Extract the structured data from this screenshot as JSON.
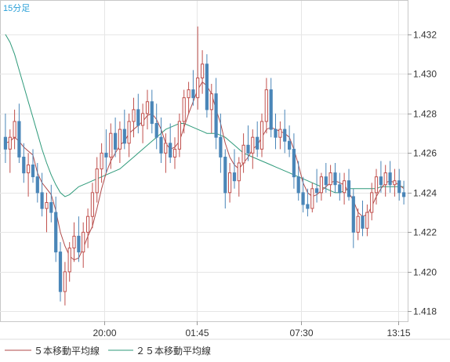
{
  "chart_data": {
    "type": "candlestick",
    "interval_label": "15分足",
    "x_ticks": [
      "20:00",
      "01:45",
      "07:30",
      "13:15"
    ],
    "y_ticks": [
      "1.418",
      "1.420",
      "1.422",
      "1.424",
      "1.426",
      "1.428",
      "1.430",
      "1.432"
    ],
    "ylim": [
      1.4175,
      1.4337
    ],
    "grid": true,
    "legend_position": "bottom-left",
    "colors": {
      "up": "#c0504d",
      "down": "#4a86b8",
      "ma5": "#b04a4a",
      "ma25": "#2e9a7a",
      "grid": "#e6e6e6",
      "interval": "#2aa0d8"
    },
    "legend": [
      {
        "label": "５本移動平均線",
        "color": "#b04a4a"
      },
      {
        "label": "２５本移動平均線",
        "color": "#2e9a7a"
      }
    ],
    "candles": [
      [
        1.4268,
        1.428,
        1.4255,
        1.4262
      ],
      [
        1.4262,
        1.4272,
        1.425,
        1.4268
      ],
      [
        1.4268,
        1.4282,
        1.4262,
        1.4276
      ],
      [
        1.4276,
        1.4285,
        1.4255,
        1.4258
      ],
      [
        1.4258,
        1.4265,
        1.4245,
        1.425
      ],
      [
        1.425,
        1.426,
        1.4238,
        1.4254
      ],
      [
        1.4254,
        1.4262,
        1.4245,
        1.4248
      ],
      [
        1.4248,
        1.4255,
        1.4235,
        1.424
      ],
      [
        1.424,
        1.425,
        1.4228,
        1.4232
      ],
      [
        1.4232,
        1.424,
        1.422,
        1.4235
      ],
      [
        1.4235,
        1.4244,
        1.4225,
        1.423
      ],
      [
        1.423,
        1.4238,
        1.4205,
        1.421
      ],
      [
        1.421,
        1.4215,
        1.4185,
        1.419
      ],
      [
        1.419,
        1.4205,
        1.4183,
        1.42
      ],
      [
        1.42,
        1.4215,
        1.4195,
        1.4212
      ],
      [
        1.4212,
        1.4225,
        1.4205,
        1.4218
      ],
      [
        1.4218,
        1.4228,
        1.4205,
        1.421
      ],
      [
        1.421,
        1.4225,
        1.4202,
        1.422
      ],
      [
        1.422,
        1.4232,
        1.4212,
        1.4228
      ],
      [
        1.4228,
        1.4245,
        1.4222,
        1.424
      ],
      [
        1.424,
        1.4258,
        1.4235,
        1.4252
      ],
      [
        1.4252,
        1.4265,
        1.4245,
        1.426
      ],
      [
        1.426,
        1.4272,
        1.425,
        1.4258
      ],
      [
        1.4258,
        1.4275,
        1.4252,
        1.427
      ],
      [
        1.427,
        1.4278,
        1.4258,
        1.4262
      ],
      [
        1.4262,
        1.4276,
        1.4255,
        1.4272
      ],
      [
        1.4272,
        1.4282,
        1.4262,
        1.4265
      ],
      [
        1.4265,
        1.428,
        1.4258,
        1.4276
      ],
      [
        1.4276,
        1.4288,
        1.4268,
        1.4282
      ],
      [
        1.4282,
        1.429,
        1.427,
        1.4274
      ],
      [
        1.4274,
        1.4285,
        1.4265,
        1.428
      ],
      [
        1.428,
        1.4292,
        1.4272,
        1.4286
      ],
      [
        1.4286,
        1.4292,
        1.427,
        1.4275
      ],
      [
        1.4275,
        1.4285,
        1.4262,
        1.4268
      ],
      [
        1.4268,
        1.4278,
        1.4255,
        1.426
      ],
      [
        1.426,
        1.427,
        1.425,
        1.4265
      ],
      [
        1.4265,
        1.4275,
        1.4255,
        1.4258
      ],
      [
        1.4258,
        1.4268,
        1.4252,
        1.4262
      ],
      [
        1.4262,
        1.428,
        1.4258,
        1.4276
      ],
      [
        1.4276,
        1.4292,
        1.427,
        1.4288
      ],
      [
        1.4288,
        1.4296,
        1.428,
        1.4292
      ],
      [
        1.4292,
        1.4302,
        1.4284,
        1.4288
      ],
      [
        1.4288,
        1.4324,
        1.4282,
        1.4298
      ],
      [
        1.4298,
        1.4312,
        1.429,
        1.4305
      ],
      [
        1.4305,
        1.431,
        1.4278,
        1.4282
      ],
      [
        1.4282,
        1.4295,
        1.427,
        1.429
      ],
      [
        1.429,
        1.4298,
        1.4262,
        1.4268
      ],
      [
        1.4268,
        1.428,
        1.425,
        1.4258
      ],
      [
        1.4258,
        1.4262,
        1.4232,
        1.424
      ],
      [
        1.424,
        1.4255,
        1.4235,
        1.425
      ],
      [
        1.425,
        1.4262,
        1.4242,
        1.4246
      ],
      [
        1.4246,
        1.4258,
        1.4238,
        1.4255
      ],
      [
        1.4255,
        1.427,
        1.425,
        1.4264
      ],
      [
        1.4264,
        1.4274,
        1.4256,
        1.426
      ],
      [
        1.426,
        1.4272,
        1.4252,
        1.4268
      ],
      [
        1.4268,
        1.4276,
        1.4258,
        1.4262
      ],
      [
        1.4262,
        1.428,
        1.4258,
        1.4276
      ],
      [
        1.4276,
        1.4298,
        1.427,
        1.4292
      ],
      [
        1.4292,
        1.4298,
        1.4268,
        1.4272
      ],
      [
        1.4272,
        1.428,
        1.4262,
        1.4268
      ],
      [
        1.4268,
        1.4276,
        1.4262,
        1.4272
      ],
      [
        1.4272,
        1.4282,
        1.426,
        1.4266
      ],
      [
        1.4266,
        1.4274,
        1.4258,
        1.4262
      ],
      [
        1.4262,
        1.427,
        1.4242,
        1.4248
      ],
      [
        1.4248,
        1.4256,
        1.4236,
        1.424
      ],
      [
        1.424,
        1.4248,
        1.423,
        1.4234
      ],
      [
        1.4234,
        1.4242,
        1.4228,
        1.4232
      ],
      [
        1.4232,
        1.4245,
        1.423,
        1.4242
      ],
      [
        1.4242,
        1.4252,
        1.4235,
        1.424
      ],
      [
        1.424,
        1.425,
        1.4236,
        1.4248
      ],
      [
        1.4248,
        1.4255,
        1.424,
        1.4244
      ],
      [
        1.4244,
        1.4254,
        1.4238,
        1.425
      ],
      [
        1.425,
        1.4255,
        1.424,
        1.4244
      ],
      [
        1.4244,
        1.425,
        1.4236,
        1.424
      ],
      [
        1.424,
        1.425,
        1.4234,
        1.4246
      ],
      [
        1.4246,
        1.4252,
        1.4236,
        1.4238
      ],
      [
        1.4238,
        1.4242,
        1.4212,
        1.422
      ],
      [
        1.422,
        1.4232,
        1.4216,
        1.4228
      ],
      [
        1.4228,
        1.4236,
        1.4218,
        1.4222
      ],
      [
        1.4222,
        1.4234,
        1.4218,
        1.423
      ],
      [
        1.423,
        1.4245,
        1.4226,
        1.424
      ],
      [
        1.424,
        1.4252,
        1.4234,
        1.4248
      ],
      [
        1.4248,
        1.4256,
        1.424,
        1.4244
      ],
      [
        1.4244,
        1.4254,
        1.4238,
        1.425
      ],
      [
        1.425,
        1.4256,
        1.424,
        1.4244
      ],
      [
        1.4244,
        1.4252,
        1.4238,
        1.4246
      ],
      [
        1.4246,
        1.4252,
        1.4236,
        1.424
      ],
      [
        1.424,
        1.4246,
        1.4234,
        1.4238
      ]
    ],
    "ma5": [
      1.4265,
      1.4266,
      1.4268,
      1.4266,
      1.4263,
      1.4261,
      1.4259,
      1.425,
      1.4245,
      1.4242,
      1.4239,
      1.4231,
      1.422,
      1.4213,
      1.4208,
      1.4206,
      1.4207,
      1.4212,
      1.4218,
      1.4223,
      1.4232,
      1.4242,
      1.425,
      1.4256,
      1.426,
      1.4264,
      1.4266,
      1.427,
      1.4272,
      1.4274,
      1.4276,
      1.4279,
      1.428,
      1.4277,
      1.4272,
      1.4265,
      1.4262,
      1.4263,
      1.4266,
      1.4273,
      1.428,
      1.4286,
      1.4292,
      1.4296,
      1.4294,
      1.429,
      1.4282,
      1.4275,
      1.4265,
      1.4258,
      1.4254,
      1.4252,
      1.4255,
      1.4258,
      1.4262,
      1.4264,
      1.4268,
      1.4272,
      1.4273,
      1.4272,
      1.4271,
      1.427,
      1.4268,
      1.4262,
      1.4254,
      1.4245,
      1.424,
      1.4238,
      1.4239,
      1.4241,
      1.4243,
      1.4245,
      1.4246,
      1.4245,
      1.4244,
      1.424,
      1.4236,
      1.423,
      1.4228,
      1.4229,
      1.4233,
      1.4238,
      1.4242,
      1.4245,
      1.4246,
      1.4245,
      1.4244,
      1.4242
    ],
    "ma25": [
      1.432,
      1.4316,
      1.431,
      1.4302,
      1.4294,
      1.4286,
      1.4278,
      1.427,
      1.4262,
      1.4255,
      1.4249,
      1.4244,
      1.424,
      1.4238,
      1.4239,
      1.4241,
      1.4243,
      1.4244,
      1.4245,
      1.4246,
      1.4247,
      1.4248,
      1.4249,
      1.425,
      1.4251,
      1.4252,
      1.4254,
      1.4256,
      1.4258,
      1.426,
      1.4262,
      1.4264,
      1.4266,
      1.4268,
      1.427,
      1.4272,
      1.4273,
      1.4274,
      1.4275,
      1.4275,
      1.4274,
      1.4273,
      1.4272,
      1.4271,
      1.427,
      1.427,
      1.427,
      1.4269,
      1.4268,
      1.4266,
      1.4264,
      1.4262,
      1.426,
      1.4259,
      1.4258,
      1.4257,
      1.4256,
      1.4255,
      1.4254,
      1.4253,
      1.4252,
      1.4251,
      1.425,
      1.4249,
      1.4248,
      1.4247,
      1.4246,
      1.4245,
      1.4244,
      1.4243,
      1.4242,
      1.4241,
      1.424,
      1.424,
      1.4241,
      1.4242,
      1.4242,
      1.4242,
      1.4242,
      1.4242,
      1.4242,
      1.4242,
      1.4243,
      1.4243,
      1.4243,
      1.4243,
      1.4243,
      1.4243
    ]
  }
}
